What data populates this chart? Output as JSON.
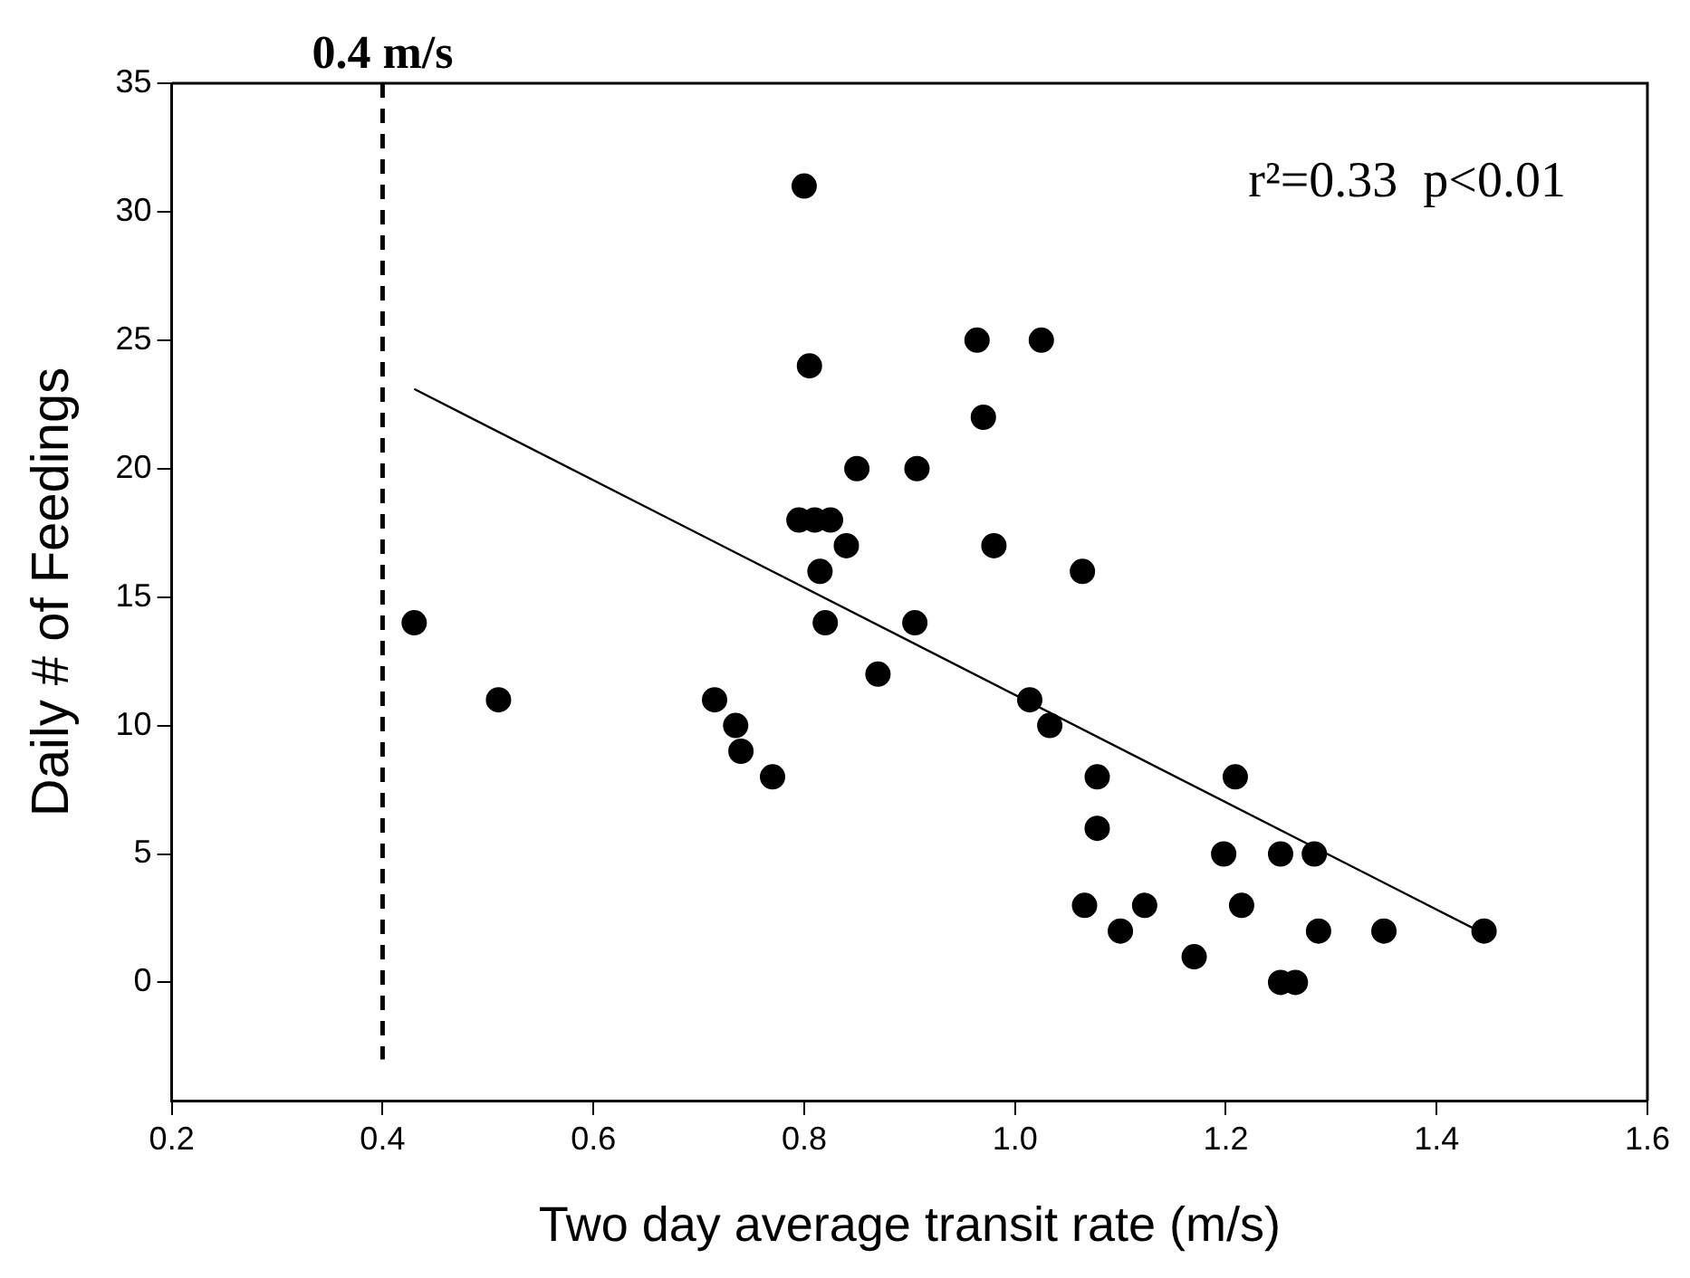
{
  "chart_data": {
    "type": "scatter",
    "xlabel": "Two day average transit rate (m/s)",
    "ylabel": "Daily # of Feedings",
    "xlim": [
      0.2,
      1.6
    ],
    "xticks": [
      {
        "value": 0.2,
        "label": "0.2"
      },
      {
        "value": 0.4,
        "label": "0.4"
      },
      {
        "value": 0.6,
        "label": "0.6"
      },
      {
        "value": 0.8,
        "label": "0.8"
      },
      {
        "value": 1.0,
        "label": "1.0"
      },
      {
        "value": 1.2,
        "label": "1.2"
      },
      {
        "value": 1.4,
        "label": "1.4"
      },
      {
        "value": 1.6,
        "label": "1.6"
      }
    ],
    "ylim": [
      -4.6,
      35
    ],
    "yticks": [
      0,
      5,
      10,
      15,
      20,
      25,
      30,
      35
    ],
    "grid": false,
    "legend": false,
    "series": [
      {
        "marker": "circle",
        "color": "#000000",
        "x": [
          0.43,
          0.51,
          0.715,
          0.735,
          0.74,
          0.77,
          0.8,
          0.805,
          0.795,
          0.81,
          0.825,
          0.815,
          0.82,
          0.84,
          0.85,
          0.87,
          0.905,
          0.907,
          0.964,
          0.97,
          0.98,
          1.025,
          1.064,
          1.066,
          1.014,
          1.033,
          1.078,
          1.078,
          1.1,
          1.123,
          1.17,
          1.198,
          1.209,
          1.215,
          1.252,
          1.284,
          1.288,
          1.35,
          1.445,
          1.252,
          1.266
        ],
        "values": [
          14,
          11,
          11,
          10,
          9,
          8,
          31,
          24,
          18,
          18,
          18,
          16,
          14,
          17,
          20,
          12,
          14,
          20,
          25,
          22,
          17,
          25,
          16,
          3,
          11,
          10,
          8,
          6,
          2,
          3,
          1,
          5,
          8,
          3,
          5,
          5,
          2,
          2,
          2,
          0,
          0
        ]
      },
      {
        "type": "line",
        "marker": "none",
        "color": "#000000",
        "x": [
          0.43,
          1.44
        ],
        "values": [
          23.1,
          2.0
        ]
      }
    ],
    "ref_lines": [
      {
        "axis": "x",
        "value": 0.4,
        "label": "0.4 m/s",
        "line_style": "dashed",
        "color": "#000000"
      }
    ],
    "annotations": [
      "r²=0.33  p<0.01"
    ]
  }
}
